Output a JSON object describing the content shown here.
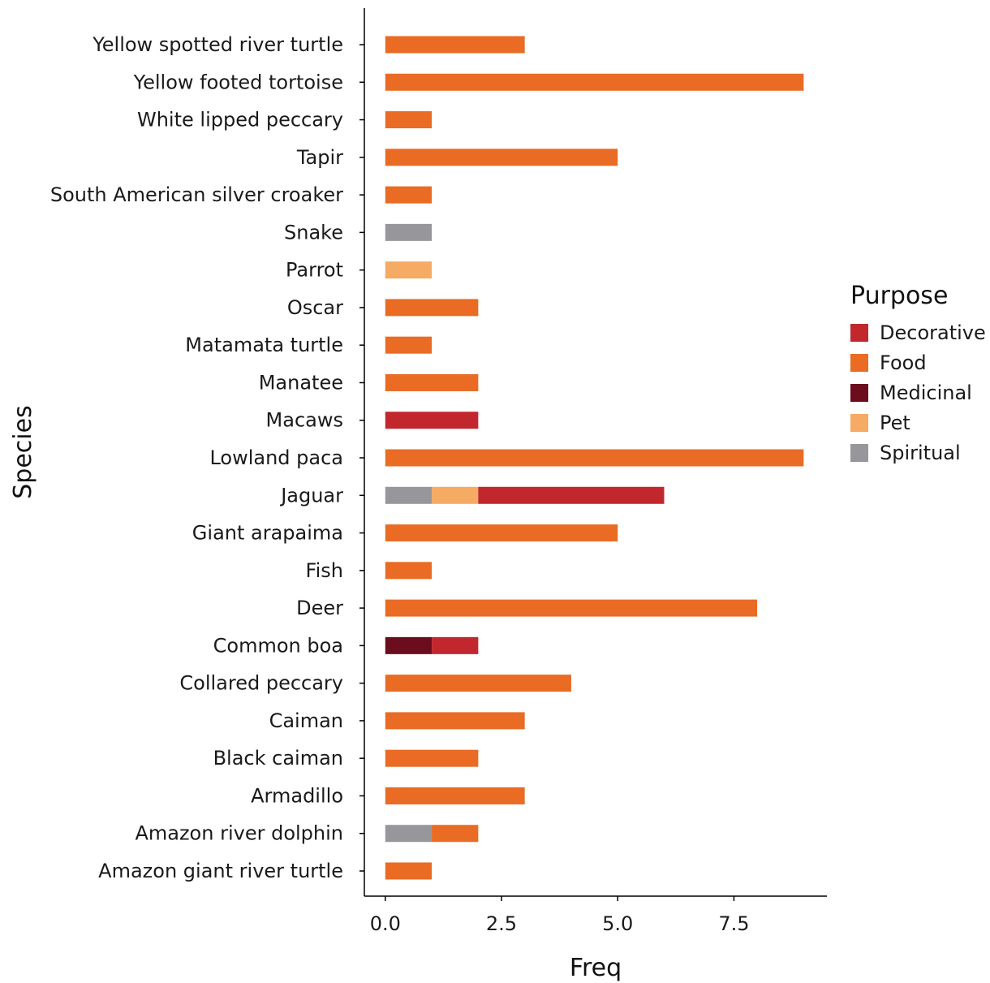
{
  "chart_data": {
    "type": "bar",
    "orientation": "horizontal",
    "stacked": true,
    "xlabel": "Freq",
    "ylabel": "Species",
    "xlim": [
      -0.45,
      9.5
    ],
    "x_ticks": [
      0,
      2.5,
      5,
      7.5
    ],
    "x_tick_labels": [
      "0.0",
      "2.5",
      "5.0",
      "7.5"
    ],
    "grid": false,
    "legend": {
      "title": "Purpose",
      "placement": "right",
      "entries": [
        {
          "name": "Decorative",
          "color": "#c1272d"
        },
        {
          "name": "Food",
          "color": "#e96b24"
        },
        {
          "name": "Medicinal",
          "color": "#6b0d1c"
        },
        {
          "name": "Pet",
          "color": "#f5ab63"
        },
        {
          "name": "Spiritual",
          "color": "#97979b"
        }
      ]
    },
    "categories": [
      "Yellow spotted river turtle",
      "Yellow footed tortoise",
      "White lipped peccary",
      "Tapir",
      "South American silver croaker",
      "Snake",
      "Parrot",
      "Oscar",
      "Matamata turtle",
      "Manatee",
      "Macaws",
      "Lowland paca",
      "Jaguar",
      "Giant arapaima",
      "Fish",
      "Deer",
      "Common boa",
      "Collared peccary",
      "Caiman",
      "Black caiman",
      "Armadillo",
      "Amazon river dolphin",
      "Amazon giant river turtle"
    ],
    "stack_order": [
      "Spiritual",
      "Pet",
      "Medicinal",
      "Food",
      "Decorative"
    ],
    "series": [
      {
        "name": "Decorative",
        "values": [
          0,
          0,
          0,
          0,
          0,
          0,
          0,
          0,
          0,
          0,
          2,
          0,
          4,
          0,
          0,
          0,
          1,
          0,
          0,
          0,
          0,
          0,
          0
        ]
      },
      {
        "name": "Food",
        "values": [
          3,
          9,
          1,
          5,
          1,
          0,
          0,
          2,
          1,
          2,
          0,
          9,
          0,
          5,
          1,
          8,
          0,
          4,
          3,
          2,
          3,
          1,
          1
        ]
      },
      {
        "name": "Medicinal",
        "values": [
          0,
          0,
          0,
          0,
          0,
          0,
          0,
          0,
          0,
          0,
          0,
          0,
          0,
          0,
          0,
          0,
          1,
          0,
          0,
          0,
          0,
          0,
          0
        ]
      },
      {
        "name": "Pet",
        "values": [
          0,
          0,
          0,
          0,
          0,
          0,
          1,
          0,
          0,
          0,
          0,
          0,
          1,
          0,
          0,
          0,
          0,
          0,
          0,
          0,
          0,
          0,
          0
        ]
      },
      {
        "name": "Spiritual",
        "values": [
          0,
          0,
          0,
          0,
          0,
          1,
          0,
          0,
          0,
          0,
          0,
          0,
          1,
          0,
          0,
          0,
          0,
          0,
          0,
          0,
          0,
          1,
          0
        ]
      }
    ]
  }
}
